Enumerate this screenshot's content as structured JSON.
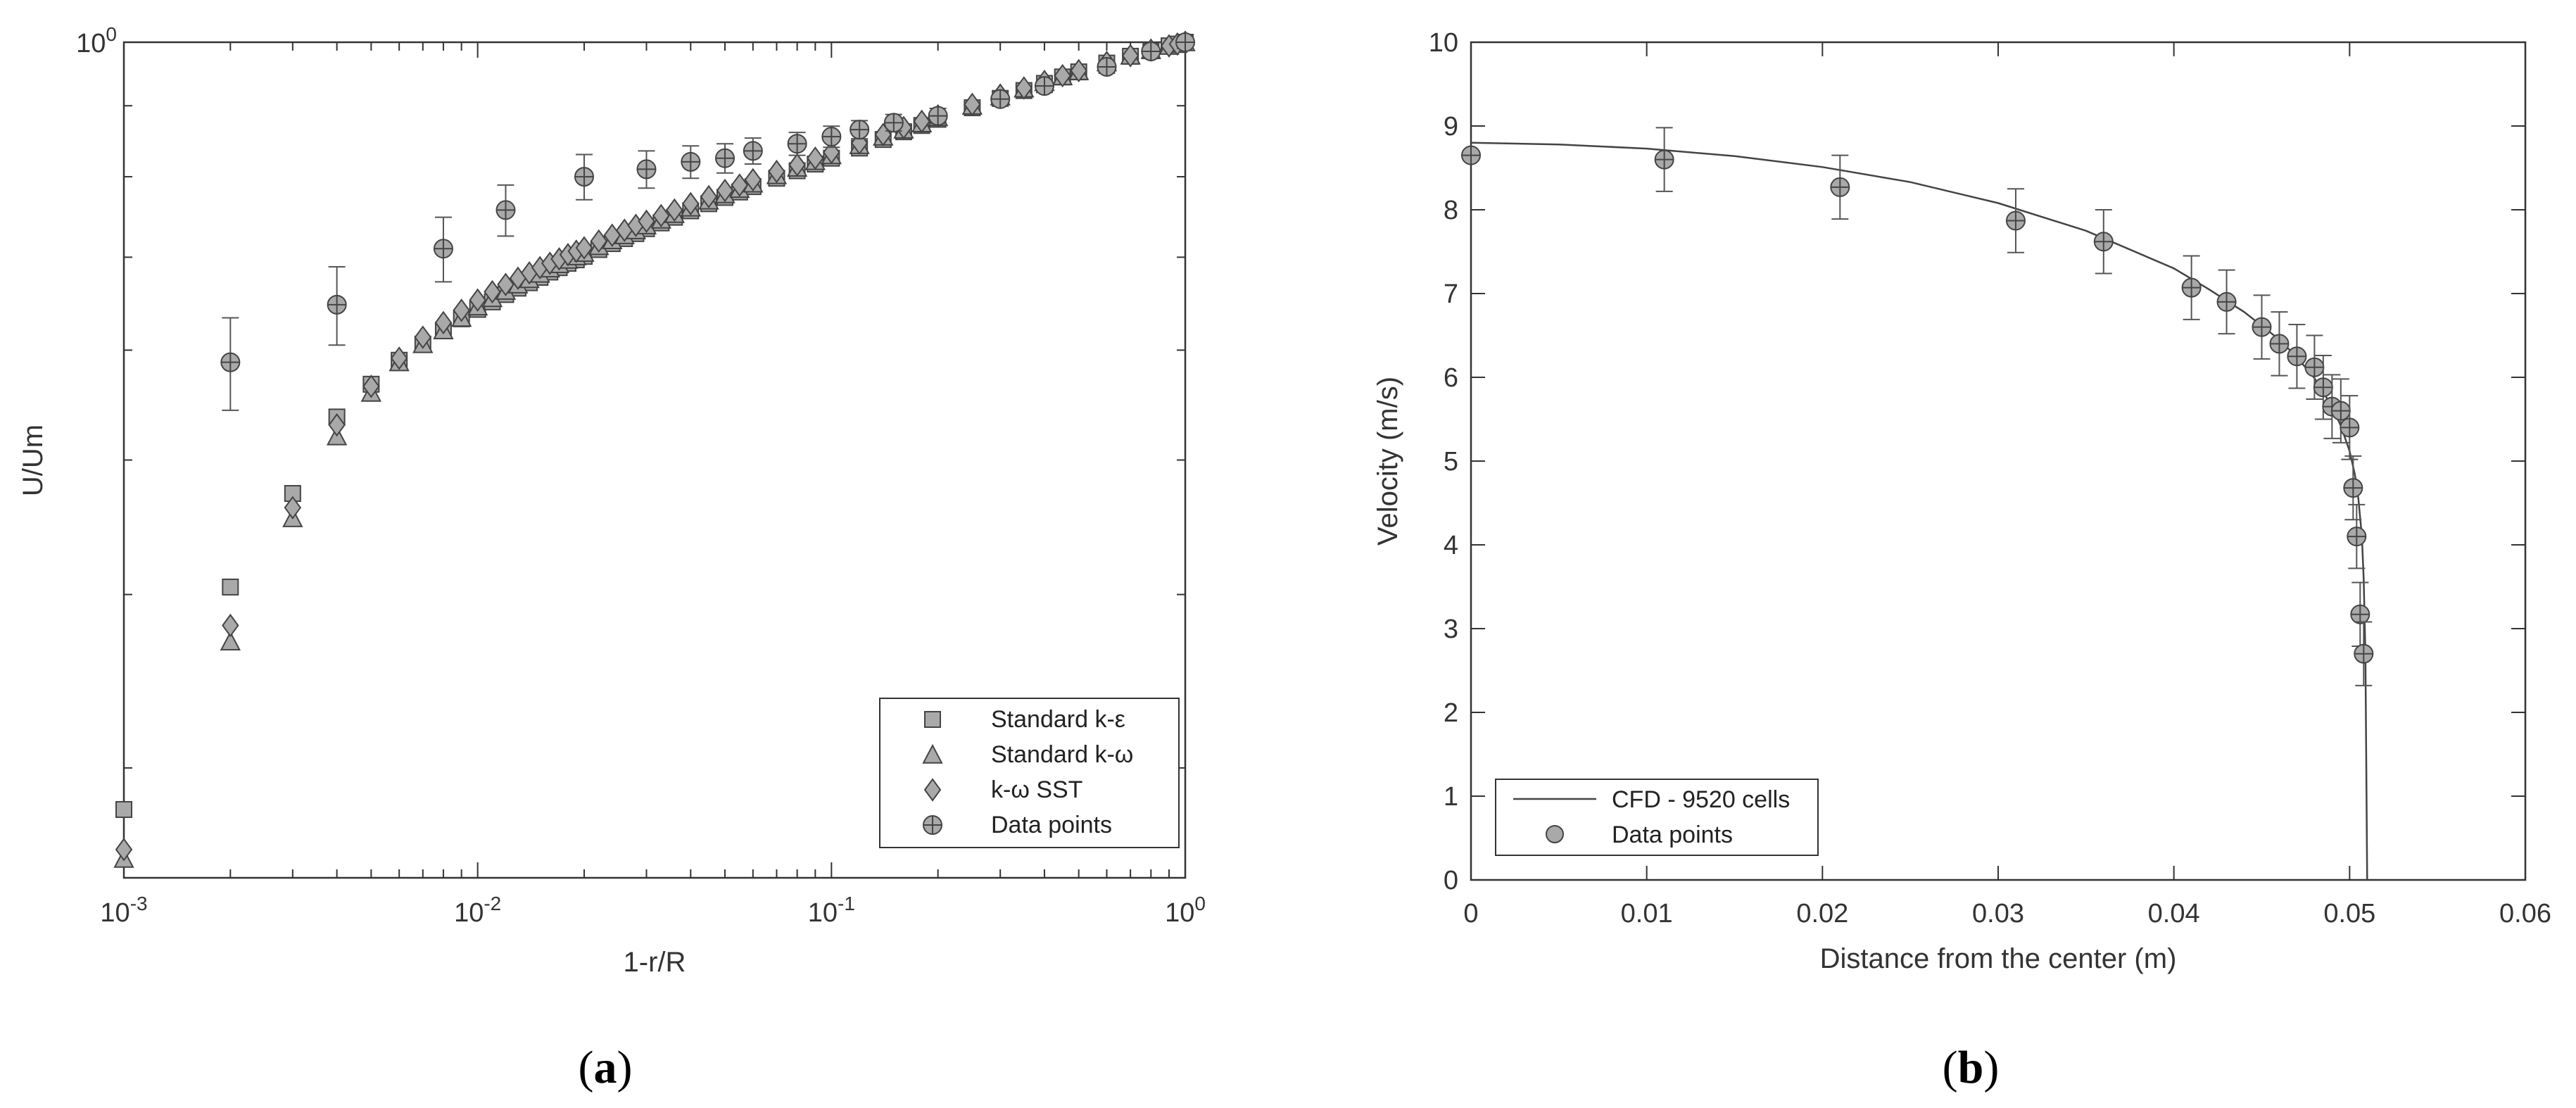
{
  "chart_data": [
    {
      "type": "scatter",
      "title": "",
      "xlabel": "1-r/R",
      "ylabel": "U/Um",
      "xscale": "log",
      "yscale": "log",
      "xlim": [
        0.001,
        1
      ],
      "ylim": [
        0.25,
        1
      ],
      "x_ticks": [
        {
          "value": 0.001,
          "base": "10",
          "exp": "-3"
        },
        {
          "value": 0.01,
          "base": "10",
          "exp": "-2"
        },
        {
          "value": 0.1,
          "base": "10",
          "exp": "-1"
        },
        {
          "value": 1,
          "base": "10",
          "exp": "0"
        }
      ],
      "y_ticks": [
        {
          "value": 1,
          "base": "10",
          "exp": "0"
        }
      ],
      "legend_position": "bottom-right",
      "panel_label": "a",
      "series": [
        {
          "name": "Standard k-ε",
          "marker": "square",
          "x": [
            0.001,
            0.002,
            0.003,
            0.004,
            0.005,
            0.006,
            0.007,
            0.008,
            0.009,
            0.01,
            0.011,
            0.012,
            0.013,
            0.014,
            0.015,
            0.016,
            0.017,
            0.018,
            0.019,
            0.02,
            0.022,
            0.024,
            0.026,
            0.028,
            0.03,
            0.033,
            0.036,
            0.04,
            0.045,
            0.05,
            0.055,
            0.06,
            0.07,
            0.08,
            0.09,
            0.1,
            0.12,
            0.14,
            0.16,
            0.18,
            0.2,
            0.25,
            0.3,
            0.35,
            0.4,
            0.45,
            0.5,
            0.6,
            0.7,
            0.8,
            0.9,
            0.95,
            1.0
          ],
          "y": [
            0.28,
            0.405,
            0.473,
            0.537,
            0.567,
            0.59,
            0.606,
            0.62,
            0.632,
            0.642,
            0.65,
            0.658,
            0.665,
            0.671,
            0.677,
            0.683,
            0.688,
            0.693,
            0.697,
            0.701,
            0.709,
            0.716,
            0.722,
            0.728,
            0.734,
            0.741,
            0.748,
            0.756,
            0.765,
            0.773,
            0.78,
            0.787,
            0.798,
            0.808,
            0.817,
            0.825,
            0.839,
            0.851,
            0.862,
            0.871,
            0.88,
            0.897,
            0.911,
            0.923,
            0.934,
            0.944,
            0.952,
            0.966,
            0.977,
            0.986,
            0.994,
            0.997,
            1.0
          ]
        },
        {
          "name": "Standard k-ω",
          "marker": "triangle",
          "x": [
            0.001,
            0.002,
            0.003,
            0.004,
            0.005,
            0.006,
            0.007,
            0.008,
            0.009,
            0.01,
            0.011,
            0.012,
            0.013,
            0.014,
            0.015,
            0.016,
            0.017,
            0.018,
            0.019,
            0.02,
            0.022,
            0.024,
            0.026,
            0.028,
            0.03,
            0.033,
            0.036,
            0.04,
            0.045,
            0.05,
            0.055,
            0.06,
            0.07,
            0.08,
            0.09,
            0.1,
            0.12,
            0.14,
            0.16,
            0.18,
            0.2,
            0.25,
            0.3,
            0.35,
            0.4,
            0.45,
            0.5,
            0.6,
            0.7,
            0.8,
            0.9,
            0.95,
            1.0
          ],
          "y": [
            0.258,
            0.37,
            0.454,
            0.52,
            0.559,
            0.588,
            0.606,
            0.62,
            0.633,
            0.645,
            0.654,
            0.662,
            0.669,
            0.675,
            0.681,
            0.687,
            0.692,
            0.697,
            0.701,
            0.705,
            0.713,
            0.72,
            0.726,
            0.732,
            0.738,
            0.745,
            0.752,
            0.76,
            0.769,
            0.777,
            0.784,
            0.791,
            0.802,
            0.812,
            0.821,
            0.829,
            0.843,
            0.855,
            0.865,
            0.874,
            0.883,
            0.9,
            0.914,
            0.926,
            0.936,
            0.945,
            0.953,
            0.967,
            0.978,
            0.987,
            0.994,
            0.997,
            1.0
          ]
        },
        {
          "name": "k-ω SST",
          "marker": "diamond",
          "x": [
            0.001,
            0.002,
            0.003,
            0.004,
            0.005,
            0.006,
            0.007,
            0.008,
            0.009,
            0.01,
            0.011,
            0.012,
            0.013,
            0.014,
            0.015,
            0.016,
            0.017,
            0.018,
            0.019,
            0.02,
            0.022,
            0.024,
            0.026,
            0.028,
            0.03,
            0.033,
            0.036,
            0.04,
            0.045,
            0.05,
            0.055,
            0.06,
            0.07,
            0.08,
            0.09,
            0.1,
            0.12,
            0.14,
            0.16,
            0.18,
            0.2,
            0.25,
            0.3,
            0.35,
            0.4,
            0.45,
            0.5,
            0.6,
            0.7,
            0.8,
            0.9,
            0.95,
            1.0
          ],
          "y": [
            0.262,
            0.38,
            0.462,
            0.53,
            0.565,
            0.592,
            0.613,
            0.628,
            0.641,
            0.652,
            0.661,
            0.669,
            0.676,
            0.682,
            0.688,
            0.693,
            0.698,
            0.703,
            0.707,
            0.711,
            0.719,
            0.726,
            0.732,
            0.738,
            0.743,
            0.75,
            0.757,
            0.765,
            0.774,
            0.782,
            0.789,
            0.796,
            0.807,
            0.816,
            0.825,
            0.833,
            0.846,
            0.858,
            0.868,
            0.877,
            0.885,
            0.902,
            0.916,
            0.927,
            0.937,
            0.946,
            0.954,
            0.967,
            0.978,
            0.987,
            0.994,
            0.997,
            1.0
          ]
        },
        {
          "name": "Data points",
          "marker": "circle-cross",
          "error_bars": true,
          "x": [
            0.002,
            0.004,
            0.008,
            0.012,
            0.02,
            0.03,
            0.04,
            0.05,
            0.06,
            0.08,
            0.1,
            0.12,
            0.15,
            0.2,
            0.3,
            0.4,
            0.6,
            0.8,
            1.0
          ],
          "y": [
            0.588,
            0.647,
            0.71,
            0.757,
            0.8,
            0.81,
            0.82,
            0.825,
            0.835,
            0.845,
            0.855,
            0.865,
            0.875,
            0.885,
            0.91,
            0.93,
            0.96,
            0.985,
            1.0
          ],
          "err": [
            0.045,
            0.042,
            0.038,
            0.032,
            0.03,
            0.025,
            0.022,
            0.02,
            0.018,
            0.016,
            0.015,
            0.013,
            0.012,
            0.011,
            0.01,
            0.01,
            0.01,
            0.01,
            0.01
          ]
        }
      ]
    },
    {
      "type": "line",
      "title": "",
      "xlabel": "Distance from the center (m)",
      "ylabel": "Velocity (m/s)",
      "xlim": [
        0,
        0.06
      ],
      "ylim": [
        0,
        10
      ],
      "x_ticks": [
        "0",
        "0.01",
        "0.02",
        "0.03",
        "0.04",
        "0.05",
        "0.06"
      ],
      "y_ticks": [
        "0",
        "1",
        "2",
        "3",
        "4",
        "5",
        "6",
        "7",
        "8",
        "9",
        "10"
      ],
      "legend_position": "bottom-left",
      "panel_label": "b",
      "series": [
        {
          "name": "CFD - 9520 cells",
          "style": "line",
          "x": [
            0,
            0.005,
            0.01,
            0.015,
            0.02,
            0.025,
            0.03,
            0.035,
            0.04,
            0.042,
            0.044,
            0.046,
            0.047,
            0.048,
            0.049,
            0.0495,
            0.05,
            0.0503,
            0.0505,
            0.0507,
            0.0508,
            0.0509,
            0.051
          ],
          "y": [
            8.8,
            8.78,
            8.73,
            8.64,
            8.51,
            8.33,
            8.08,
            7.75,
            7.3,
            7.05,
            6.78,
            6.45,
            6.24,
            5.99,
            5.65,
            5.42,
            5.12,
            4.84,
            4.55,
            4.1,
            3.6,
            2.7,
            0.0
          ]
        },
        {
          "name": "Data points",
          "style": "marker",
          "marker": "circle-cross",
          "error_bars": true,
          "x": [
            0,
            0.011,
            0.021,
            0.031,
            0.036,
            0.041,
            0.043,
            0.045,
            0.046,
            0.047,
            0.048,
            0.0485,
            0.049,
            0.0495,
            0.05,
            0.0502,
            0.0504,
            0.0506,
            0.0508
          ],
          "y": [
            8.65,
            8.6,
            8.27,
            7.87,
            7.62,
            7.07,
            6.9,
            6.6,
            6.4,
            6.25,
            6.12,
            5.88,
            5.65,
            5.6,
            5.4,
            4.68,
            4.1,
            3.17,
            2.7
          ],
          "err": [
            0.0,
            0.38,
            0.38,
            0.38,
            0.38,
            0.38,
            0.38,
            0.38,
            0.38,
            0.38,
            0.38,
            0.38,
            0.38,
            0.38,
            0.38,
            0.38,
            0.38,
            0.38,
            0.38
          ]
        }
      ]
    }
  ]
}
